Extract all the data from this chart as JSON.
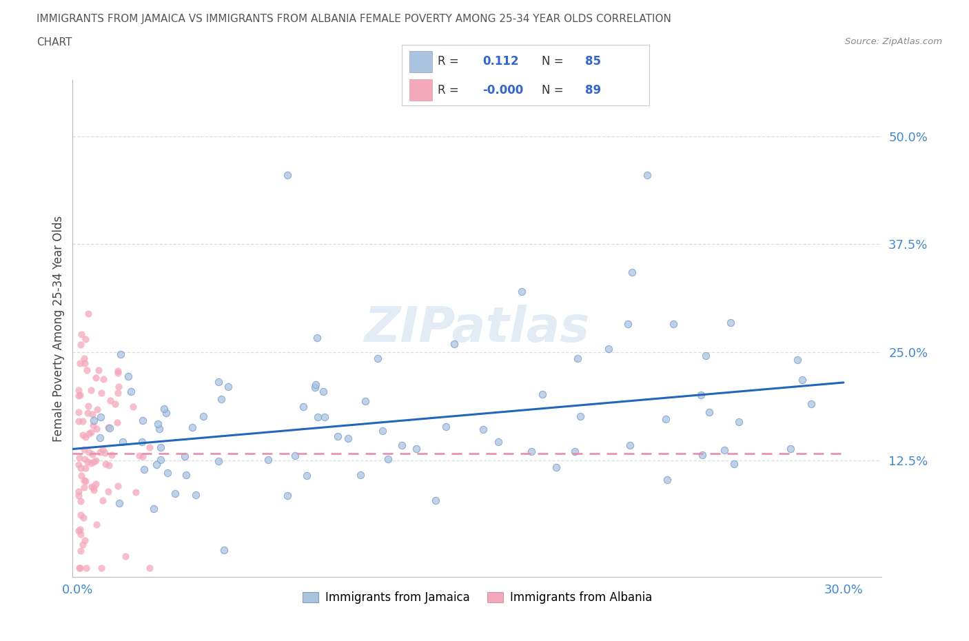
{
  "title_line1": "IMMIGRANTS FROM JAMAICA VS IMMIGRANTS FROM ALBANIA FEMALE POVERTY AMONG 25-34 YEAR OLDS CORRELATION",
  "title_line2": "CHART",
  "source": "Source: ZipAtlas.com",
  "ylabel": "Female Poverty Among 25-34 Year Olds",
  "ytick_labels": [
    "50.0%",
    "37.5%",
    "25.0%",
    "12.5%"
  ],
  "ytick_values": [
    0.5,
    0.375,
    0.25,
    0.125
  ],
  "xtick_labels": [
    "0.0%",
    "30.0%"
  ],
  "xtick_values": [
    0.0,
    0.3
  ],
  "xlim": [
    -0.002,
    0.315
  ],
  "ylim": [
    -0.01,
    0.565
  ],
  "watermark": "ZIPatlas",
  "legend_r_jamaica": "0.112",
  "legend_n_jamaica": "85",
  "legend_r_albania": "-0.000",
  "legend_n_albania": "89",
  "jamaica_color": "#aac4e0",
  "albania_color": "#f4a8bc",
  "trendline_jamaica_color": "#2266bb",
  "trendline_albania_color": "#e888aa",
  "grid_color": "#dddddd",
  "background_color": "#ffffff",
  "title_color": "#555555",
  "tick_color": "#4488cc",
  "legend_text_color_black": "#333333",
  "legend_text_color_blue": "#3366cc",
  "jamaica_trendline_start_y": 0.138,
  "jamaica_trendline_end_y": 0.215,
  "albania_trendline_y": 0.133,
  "scatter_size": 55
}
